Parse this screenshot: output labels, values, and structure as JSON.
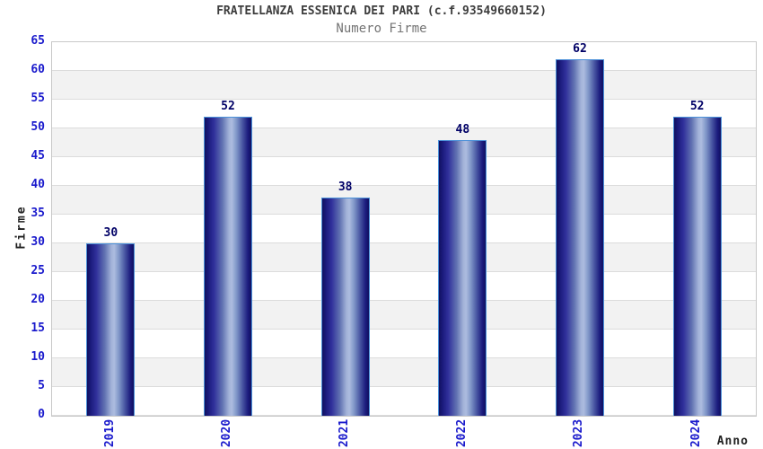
{
  "chart_data": {
    "type": "bar",
    "title": "FRATELLANZA ESSENICA DEI PARI (c.f.93549660152)",
    "subtitle": "Numero Firme",
    "xlabel": "Anno",
    "ylabel": "Firme",
    "categories": [
      "2019",
      "2020",
      "2021",
      "2022",
      "2023",
      "2024"
    ],
    "values": [
      30,
      52,
      38,
      48,
      62,
      52
    ],
    "ylim": [
      0,
      65
    ],
    "ytick_step": 5,
    "yticks": [
      0,
      5,
      10,
      15,
      20,
      25,
      30,
      35,
      40,
      45,
      50,
      55,
      60,
      65
    ],
    "grid": "horizontal-bands-alternating",
    "legend": "none",
    "colors": {
      "bar_dark": "#10105f",
      "bar_mid": "#30309b",
      "bar_highlight": "#adbcdf",
      "bar_border": "#4a90d9",
      "tick_label": "#1a1acc",
      "value_label": "#000066",
      "band_gray": "#f2f2f2",
      "gridline": "#dcdcdc",
      "plot_border": "#c8c8c8",
      "title_color": "#3d3d3d",
      "subtitle_color": "#747474",
      "axis_title_color": "#1f1f1f"
    }
  }
}
